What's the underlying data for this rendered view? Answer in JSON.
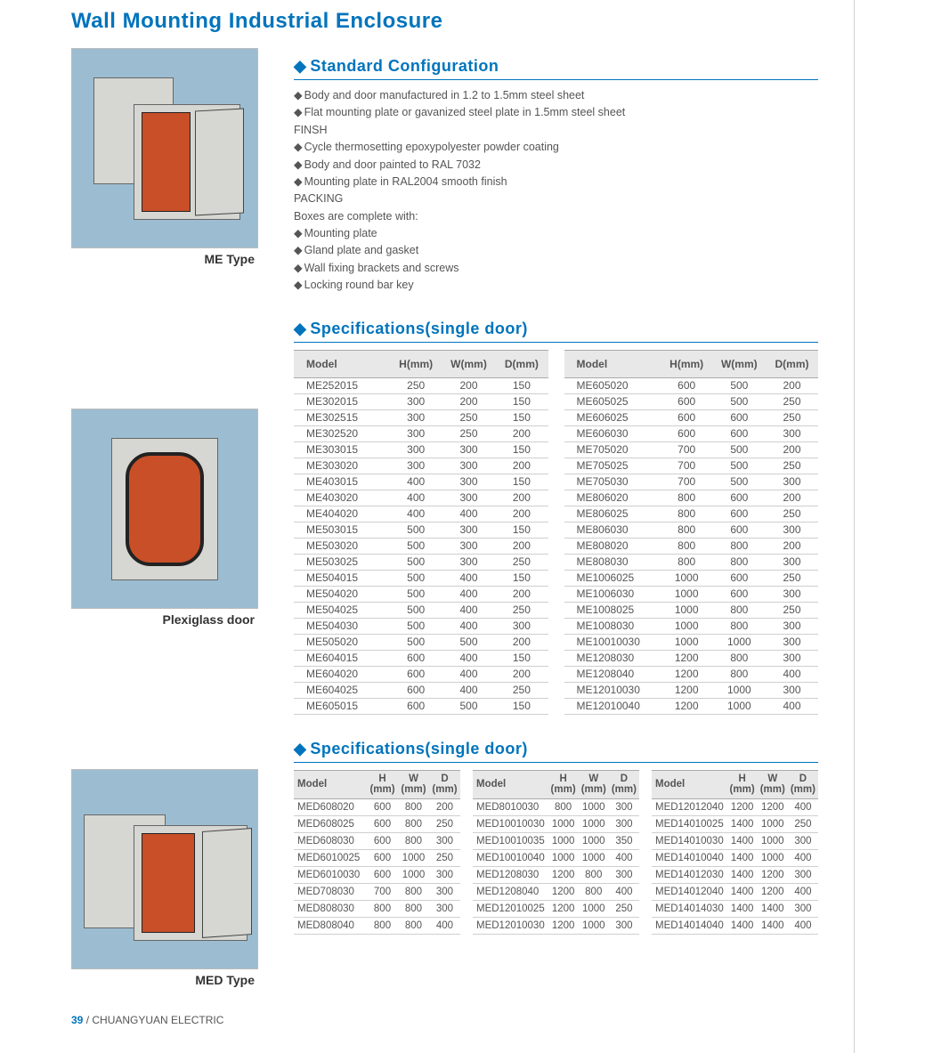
{
  "page_title": "Wall Mounting Industrial Enclosure",
  "images": {
    "me_caption": "ME Type",
    "plexi_caption": "Plexiglass door",
    "med_caption": "MED Type"
  },
  "sections": {
    "config_title": "Standard Configuration",
    "spec1_title": "Specifications(single door)",
    "spec2_title": "Specifications(single door)"
  },
  "config_lines": [
    {
      "b": true,
      "t": "Body and door manufactured in 1.2 to 1.5mm steel sheet"
    },
    {
      "b": true,
      "t": "Flat mounting plate or gavanized steel plate in 1.5mm steel sheet"
    },
    {
      "b": false,
      "t": "FINSH"
    },
    {
      "b": true,
      "t": "Cycle thermosetting epoxypolyester powder coating"
    },
    {
      "b": true,
      "t": "Body and door painted to RAL 7032"
    },
    {
      "b": true,
      "t": "Mounting plate in RAL2004 smooth finish"
    },
    {
      "b": false,
      "t": "PACKING"
    },
    {
      "b": false,
      "t": "Boxes are complete with:"
    },
    {
      "b": true,
      "t": "Mounting plate"
    },
    {
      "b": true,
      "t": "Gland plate and gasket"
    },
    {
      "b": true,
      "t": "Wall fixing brackets and screws"
    },
    {
      "b": true,
      "t": "Locking round bar key"
    }
  ],
  "columns": {
    "model": "Model",
    "h": "H(mm)",
    "w": "W(mm)",
    "d": "D(mm)"
  },
  "columns_compact": {
    "model": "Model",
    "h": "H\n(mm)",
    "w": "W\n(mm)",
    "d": "D\n(mm)"
  },
  "spec_left": [
    [
      "ME252015",
      "250",
      "200",
      "150"
    ],
    [
      "ME302015",
      "300",
      "200",
      "150"
    ],
    [
      "ME302515",
      "300",
      "250",
      "150"
    ],
    [
      "ME302520",
      "300",
      "250",
      "200"
    ],
    [
      "ME303015",
      "300",
      "300",
      "150"
    ],
    [
      "ME303020",
      "300",
      "300",
      "200"
    ],
    [
      "ME403015",
      "400",
      "300",
      "150"
    ],
    [
      "ME403020",
      "400",
      "300",
      "200"
    ],
    [
      "ME404020",
      "400",
      "400",
      "200"
    ],
    [
      "ME503015",
      "500",
      "300",
      "150"
    ],
    [
      "ME503020",
      "500",
      "300",
      "200"
    ],
    [
      "ME503025",
      "500",
      "300",
      "250"
    ],
    [
      "ME504015",
      "500",
      "400",
      "150"
    ],
    [
      "ME504020",
      "500",
      "400",
      "200"
    ],
    [
      "ME504025",
      "500",
      "400",
      "250"
    ],
    [
      "ME504030",
      "500",
      "400",
      "300"
    ],
    [
      "ME505020",
      "500",
      "500",
      "200"
    ],
    [
      "ME604015",
      "600",
      "400",
      "150"
    ],
    [
      "ME604020",
      "600",
      "400",
      "200"
    ],
    [
      "ME604025",
      "600",
      "400",
      "250"
    ],
    [
      "ME605015",
      "600",
      "500",
      "150"
    ]
  ],
  "spec_right": [
    [
      "ME605020",
      "600",
      "500",
      "200"
    ],
    [
      "ME605025",
      "600",
      "500",
      "250"
    ],
    [
      "ME606025",
      "600",
      "600",
      "250"
    ],
    [
      "ME606030",
      "600",
      "600",
      "300"
    ],
    [
      "ME705020",
      "700",
      "500",
      "200"
    ],
    [
      "ME705025",
      "700",
      "500",
      "250"
    ],
    [
      "ME705030",
      "700",
      "500",
      "300"
    ],
    [
      "ME806020",
      "800",
      "600",
      "200"
    ],
    [
      "ME806025",
      "800",
      "600",
      "250"
    ],
    [
      "ME806030",
      "800",
      "600",
      "300"
    ],
    [
      "ME808020",
      "800",
      "800",
      "200"
    ],
    [
      "ME808030",
      "800",
      "800",
      "300"
    ],
    [
      "ME1006025",
      "1000",
      "600",
      "250"
    ],
    [
      "ME1006030",
      "1000",
      "600",
      "300"
    ],
    [
      "ME1008025",
      "1000",
      "800",
      "250"
    ],
    [
      "ME1008030",
      "1000",
      "800",
      "300"
    ],
    [
      "ME10010030",
      "1000",
      "1000",
      "300"
    ],
    [
      "ME1208030",
      "1200",
      "800",
      "300"
    ],
    [
      "ME1208040",
      "1200",
      "800",
      "400"
    ],
    [
      "ME12010030",
      "1200",
      "1000",
      "300"
    ],
    [
      "ME12010040",
      "1200",
      "1000",
      "400"
    ]
  ],
  "med_a": [
    [
      "MED608020",
      "600",
      "800",
      "200"
    ],
    [
      "MED608025",
      "600",
      "800",
      "250"
    ],
    [
      "MED608030",
      "600",
      "800",
      "300"
    ],
    [
      "MED6010025",
      "600",
      "1000",
      "250"
    ],
    [
      "MED6010030",
      "600",
      "1000",
      "300"
    ],
    [
      "MED708030",
      "700",
      "800",
      "300"
    ],
    [
      "MED808030",
      "800",
      "800",
      "300"
    ],
    [
      "MED808040",
      "800",
      "800",
      "400"
    ]
  ],
  "med_b": [
    [
      "MED8010030",
      "800",
      "1000",
      "300"
    ],
    [
      "MED10010030",
      "1000",
      "1000",
      "300"
    ],
    [
      "MED10010035",
      "1000",
      "1000",
      "350"
    ],
    [
      "MED10010040",
      "1000",
      "1000",
      "400"
    ],
    [
      "MED1208030",
      "1200",
      "800",
      "300"
    ],
    [
      "MED1208040",
      "1200",
      "800",
      "400"
    ],
    [
      "MED12010025",
      "1200",
      "1000",
      "250"
    ],
    [
      "MED12010030",
      "1200",
      "1000",
      "300"
    ]
  ],
  "med_c": [
    [
      "MED12012040",
      "1200",
      "1200",
      "400"
    ],
    [
      "MED14010025",
      "1400",
      "1000",
      "250"
    ],
    [
      "MED14010030",
      "1400",
      "1000",
      "300"
    ],
    [
      "MED14010040",
      "1400",
      "1000",
      "400"
    ],
    [
      "MED14012030",
      "1400",
      "1200",
      "300"
    ],
    [
      "MED14012040",
      "1400",
      "1200",
      "400"
    ],
    [
      "MED14014030",
      "1400",
      "1400",
      "300"
    ],
    [
      "MED14014040",
      "1400",
      "1400",
      "400"
    ]
  ],
  "footer": {
    "page": "39",
    "sep": " / ",
    "company": "CHUANGYUAN ELECTRIC"
  },
  "colors": {
    "accent": "#0074bc",
    "text": "#555555",
    "hdr_bg": "#e8e8e8",
    "img_bg": "#9cbdd1",
    "panel": "#c84f28",
    "body": "#d6d6d2"
  }
}
